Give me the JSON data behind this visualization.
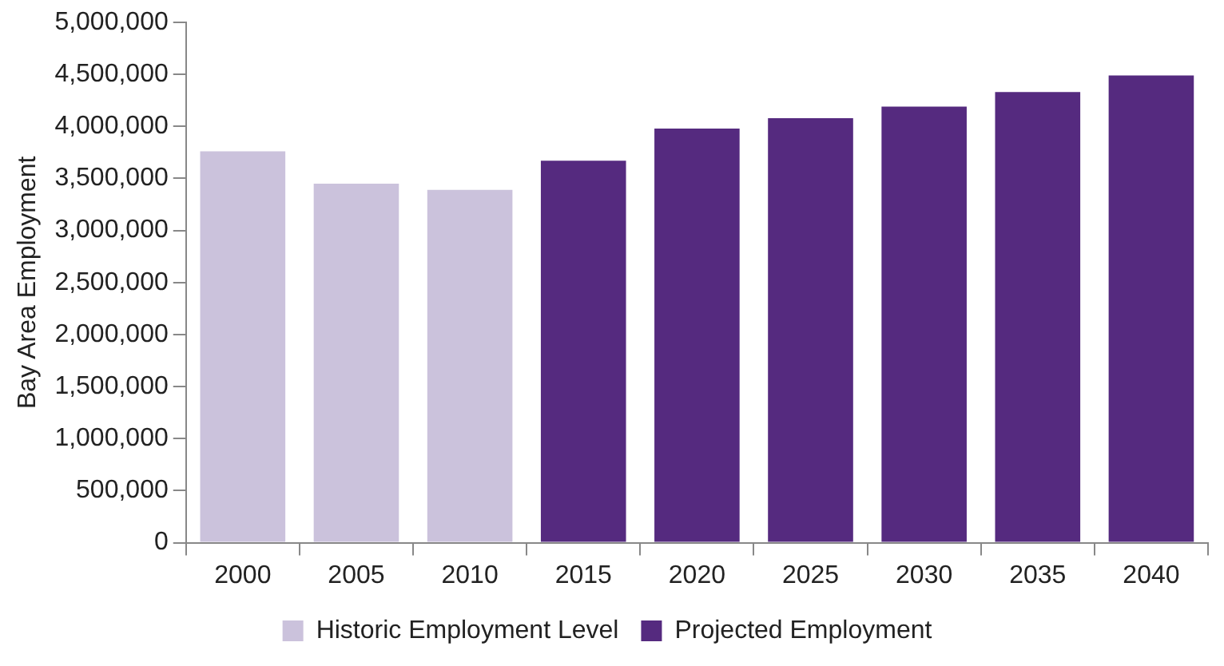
{
  "chart_data": {
    "type": "bar",
    "ylabel": "Bay Area Employment",
    "categories": [
      "2000",
      "2005",
      "2010",
      "2015",
      "2020",
      "2025",
      "2030",
      "2035",
      "2040"
    ],
    "series": [
      {
        "name": "Historic Employment Level",
        "color": "#cbc2dc",
        "values": [
          3760000,
          3450000,
          3390000,
          null,
          null,
          null,
          null,
          null,
          null
        ]
      },
      {
        "name": "Projected Employment",
        "color": "#552a7f",
        "values": [
          null,
          null,
          null,
          3670000,
          3980000,
          4080000,
          4190000,
          4330000,
          4490000
        ]
      }
    ],
    "ylim": [
      0,
      5000000
    ],
    "yticks": [
      0,
      {
        "value": 500000,
        "label": "500,000"
      },
      {
        "value": 1000000,
        "label": "1,000,000"
      },
      {
        "value": 1500000,
        "label": "1,500,000"
      },
      {
        "value": 2000000,
        "label": "2,000,000"
      },
      {
        "value": 2500000,
        "label": "2,500,000"
      },
      {
        "value": 3000000,
        "label": "3,000,000"
      },
      {
        "value": 3500000,
        "label": "3,500,000"
      },
      {
        "value": 4000000,
        "label": "4,000,000"
      },
      {
        "value": 4500000,
        "label": "4,500,000"
      },
      {
        "value": 5000000,
        "label": "5,000,000"
      }
    ],
    "grid": false,
    "legend": "bottom"
  }
}
